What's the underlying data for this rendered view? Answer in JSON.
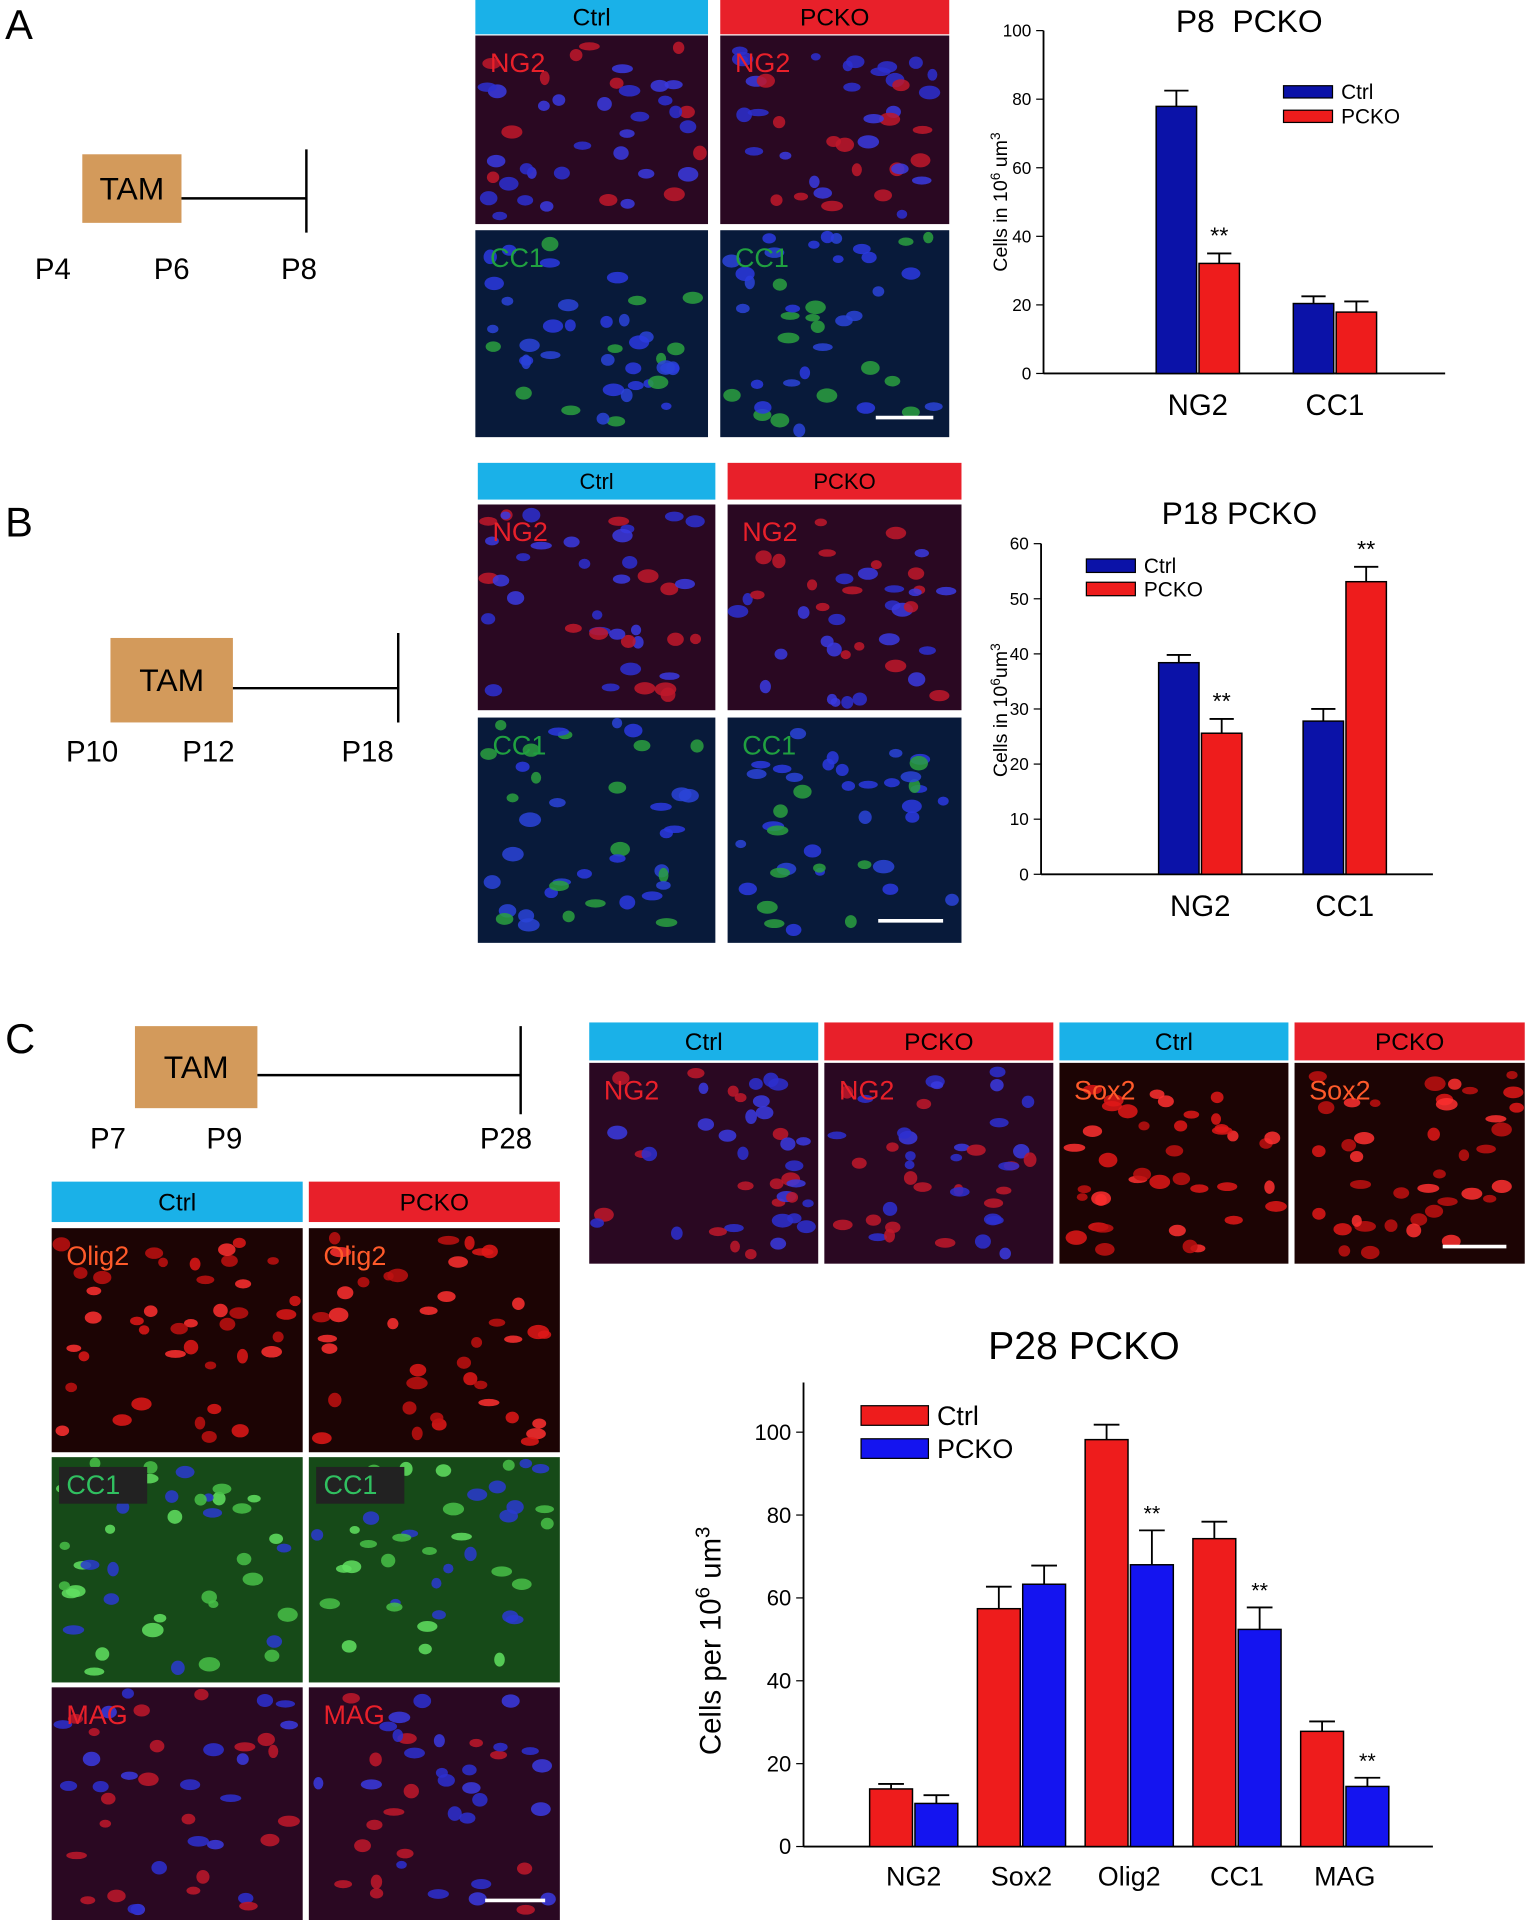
{
  "panels": [
    {
      "letter": "A",
      "timeline": {
        "box": "TAM",
        "labels": [
          "P4",
          "P6",
          "P8"
        ]
      },
      "grids": [
        {
          "headers": [
            "Ctrl",
            "PCKO"
          ],
          "labels": [
            "NG2",
            "NG2",
            "CC1",
            "CC1"
          ]
        }
      ]
    },
    {
      "letter": "B",
      "timeline": {
        "box": "TAM",
        "labels": [
          "P10",
          "P12",
          "P18"
        ]
      },
      "grids": [
        {
          "headers": [
            "Ctrl",
            "PCKO"
          ],
          "labels": [
            "NG2",
            "NG2",
            "CC1",
            "CC1"
          ]
        }
      ]
    },
    {
      "letter": "C",
      "timeline": {
        "box": "TAM",
        "labels": [
          "P7",
          "P9",
          "P28"
        ]
      },
      "grids": [
        {
          "headers": [
            "Ctrl",
            "PCKO",
            "Ctrl",
            "PCKO"
          ],
          "labels": [
            "NG2",
            "NG2",
            "Sox2",
            "Sox2"
          ]
        },
        {
          "headers": [
            "Ctrl",
            "PCKO"
          ],
          "labels": [
            "Olig2",
            "Olig2",
            "CC1",
            "CC1",
            "MAG",
            "MAG"
          ]
        }
      ]
    }
  ],
  "chart_data": [
    {
      "type": "bar",
      "title": "P8  PCKO",
      "ylabel": [
        "Cells in 10",
        "6",
        " um",
        "3"
      ],
      "categories": [
        "NG2",
        "CC1"
      ],
      "ylim": [
        0,
        100
      ],
      "yticks": [
        0,
        20,
        40,
        60,
        80,
        100
      ],
      "grid": false,
      "legend": "upper right",
      "series": [
        {
          "name": "Ctrl",
          "color": "#0b12a8",
          "values": [
            77.9,
            20.4
          ],
          "errors": [
            4.6,
            2.1
          ],
          "significance": [
            null,
            null
          ]
        },
        {
          "name": "PCKO",
          "color": "#ee1c1c",
          "values": [
            32.1,
            17.9
          ],
          "errors": [
            2.9,
            3.1
          ],
          "significance": [
            "**",
            null
          ]
        }
      ]
    },
    {
      "type": "bar",
      "title": "P18 PCKO",
      "ylabel": [
        "Cells in 10",
        "6",
        "um",
        "3"
      ],
      "categories": [
        "NG2",
        "CC1"
      ],
      "ylim": [
        0,
        60
      ],
      "yticks": [
        0,
        10,
        20,
        30,
        40,
        50,
        60
      ],
      "grid": false,
      "legend": "upper left",
      "series": [
        {
          "name": "Ctrl",
          "color": "#0b12a8",
          "values": [
            38.4,
            27.8
          ],
          "errors": [
            1.4,
            2.2
          ],
          "significance": [
            null,
            null
          ]
        },
        {
          "name": "PCKO",
          "color": "#ee1c1c",
          "values": [
            25.6,
            53.1
          ],
          "errors": [
            2.6,
            2.7
          ],
          "significance": [
            "**",
            "**"
          ]
        }
      ]
    },
    {
      "type": "bar",
      "title": "P28 PCKO",
      "ylabel": [
        "Cells per 10",
        "6",
        " um",
        "3"
      ],
      "categories": [
        "NG2",
        "Sox2",
        "Olig2",
        "CC1",
        "MAG"
      ],
      "ylim": [
        0,
        112
      ],
      "yticks": [
        0,
        20,
        40,
        60,
        80,
        100
      ],
      "grid": false,
      "legend": "upper left",
      "series": [
        {
          "name": "Ctrl",
          "color": "#ee1c1c",
          "values": [
            13.9,
            57.4,
            98.2,
            74.3,
            27.8
          ],
          "errors": [
            1.2,
            5.3,
            3.6,
            4.1,
            2.4
          ],
          "significance": [
            null,
            null,
            null,
            null,
            null
          ]
        },
        {
          "name": "PCKO",
          "color": "#1414f0",
          "values": [
            10.4,
            63.3,
            68.0,
            52.4,
            14.5
          ],
          "errors": [
            2.0,
            4.5,
            8.3,
            5.3,
            2.1
          ],
          "significance": [
            null,
            null,
            "**",
            "**",
            "**"
          ]
        }
      ]
    }
  ]
}
